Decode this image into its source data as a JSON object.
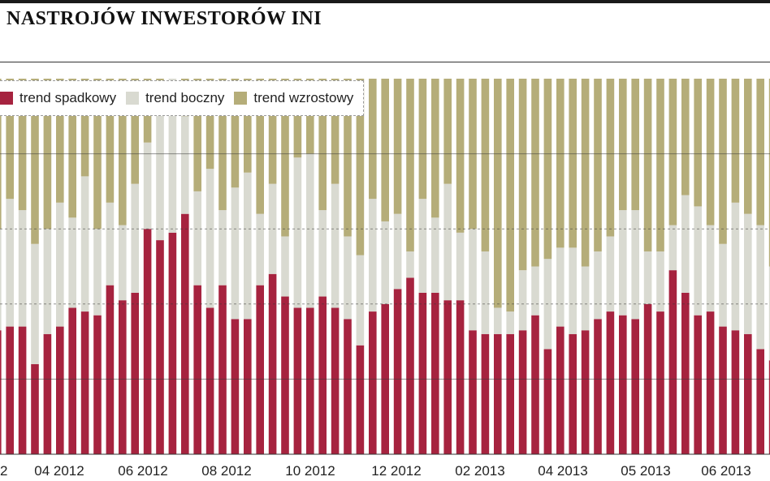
{
  "header": {
    "title": "NASTROJÓW INWESTORÓW INI"
  },
  "colors": {
    "spadkowy": "#a6233f",
    "boczny": "#d9dad1",
    "wzrostowy": "#b5ad79",
    "gridline": "#3a3a3a"
  },
  "chart_data": {
    "type": "bar",
    "stacked": true,
    "title": "NASTROJÓW INWESTORÓW INI",
    "xlabel": "",
    "ylabel": "",
    "ylim": [
      0,
      100
    ],
    "legend_position": "top-left",
    "legend": [
      "trend spadkowy",
      "trend boczny",
      "trend wzrostowy"
    ],
    "x_ticks": [
      "2",
      "04 2012",
      "06 2012",
      "08 2012",
      "10 2012",
      "12 2012",
      "02 2013",
      "04 2013",
      "05 2013",
      "06 2013"
    ],
    "series": [
      {
        "name": "trend spadkowy",
        "color": "#a6233f",
        "values": [
          33,
          34,
          34,
          24,
          32,
          34,
          39,
          38,
          37,
          45,
          41,
          43,
          60,
          57,
          59,
          64,
          45,
          39,
          45,
          36,
          36,
          45,
          48,
          42,
          39,
          39,
          42,
          39,
          36,
          29,
          38,
          40,
          44,
          47,
          43,
          43,
          41,
          41,
          33,
          32,
          32,
          32,
          33,
          37,
          28,
          34,
          32,
          33,
          36,
          38,
          37,
          36,
          40,
          38,
          49,
          43,
          37,
          38,
          34,
          33,
          32,
          28,
          25
        ]
      },
      {
        "name": "trend boczny",
        "color": "#d9dad1",
        "values": [
          27,
          34,
          31,
          32,
          28,
          33,
          24,
          36,
          23,
          22,
          20,
          29,
          23,
          35,
          41,
          26,
          25,
          37,
          20,
          35,
          39,
          19,
          24,
          16,
          40,
          41,
          23,
          33,
          22,
          24,
          30,
          22,
          20,
          7,
          25,
          20,
          31,
          18,
          27,
          22,
          7,
          6,
          16,
          13,
          24,
          21,
          23,
          17,
          18,
          20,
          28,
          29,
          14,
          16,
          12,
          26,
          29,
          23,
          22,
          34,
          32,
          33,
          25
        ]
      },
      {
        "name": "trend wzrostowy",
        "color": "#b5ad79",
        "values": [
          40,
          32,
          35,
          44,
          40,
          33,
          37,
          26,
          40,
          33,
          39,
          28,
          17,
          8,
          0,
          10,
          30,
          24,
          35,
          29,
          25,
          36,
          28,
          42,
          21,
          20,
          35,
          28,
          42,
          47,
          32,
          38,
          36,
          46,
          32,
          37,
          28,
          41,
          40,
          46,
          61,
          62,
          51,
          50,
          48,
          45,
          45,
          50,
          46,
          42,
          35,
          35,
          46,
          46,
          39,
          31,
          34,
          39,
          44,
          33,
          36,
          39,
          50
        ]
      }
    ]
  }
}
